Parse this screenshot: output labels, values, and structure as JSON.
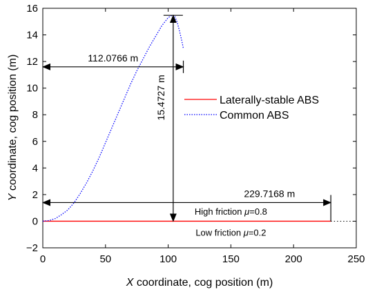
{
  "chart_data": {
    "type": "line",
    "title": "",
    "xlabel": "X coordinate, cog position (m)",
    "xlabel_parts": {
      "var": "X",
      "rest": " coordinate, cog position (m)"
    },
    "ylabel": "Y coordinate, cog position (m)",
    "ylabel_parts": {
      "var": "Y",
      "rest": " coordinate, cog position (m)"
    },
    "xlim": [
      0,
      250
    ],
    "ylim": [
      -2,
      16
    ],
    "xticks": [
      0,
      50,
      100,
      150,
      200,
      250
    ],
    "yticks": [
      -2,
      0,
      2,
      4,
      6,
      8,
      10,
      12,
      14,
      16
    ],
    "grid": false,
    "legend_position": "right-center",
    "series": [
      {
        "name": "Laterally-stable ABS",
        "color": "#ff0000",
        "style": "solid",
        "x": [
          0,
          229.7168
        ],
        "y": [
          0,
          0
        ]
      },
      {
        "name": "Common ABS",
        "color": "#0000ff",
        "style": "dotted",
        "x": [
          0,
          5,
          10,
          15,
          20,
          25,
          30,
          35,
          40,
          45,
          50,
          55,
          60,
          65,
          70,
          75,
          80,
          85,
          90,
          95,
          100,
          103,
          104,
          105,
          107,
          109,
          110.5,
          112.0766
        ],
        "y": [
          0,
          0.05,
          0.2,
          0.5,
          0.85,
          1.4,
          2.1,
          2.9,
          3.8,
          4.8,
          5.9,
          7.0,
          8.1,
          9.2,
          10.3,
          11.3,
          12.2,
          13.1,
          13.9,
          14.7,
          15.3,
          15.47,
          15.4727,
          15.45,
          15.0,
          14.3,
          13.7,
          13.0
        ]
      }
    ],
    "annotations": {
      "dist_common_x": "112.0766 m",
      "dist_common_y": "15.4727 m",
      "dist_stable_x": "229.7168 m",
      "high_friction": {
        "prefix": "High friction ",
        "mu": "μ",
        "value": "=0.8"
      },
      "low_friction": {
        "prefix": "Low friction ",
        "mu": "μ",
        "value": "=0.2"
      }
    }
  }
}
